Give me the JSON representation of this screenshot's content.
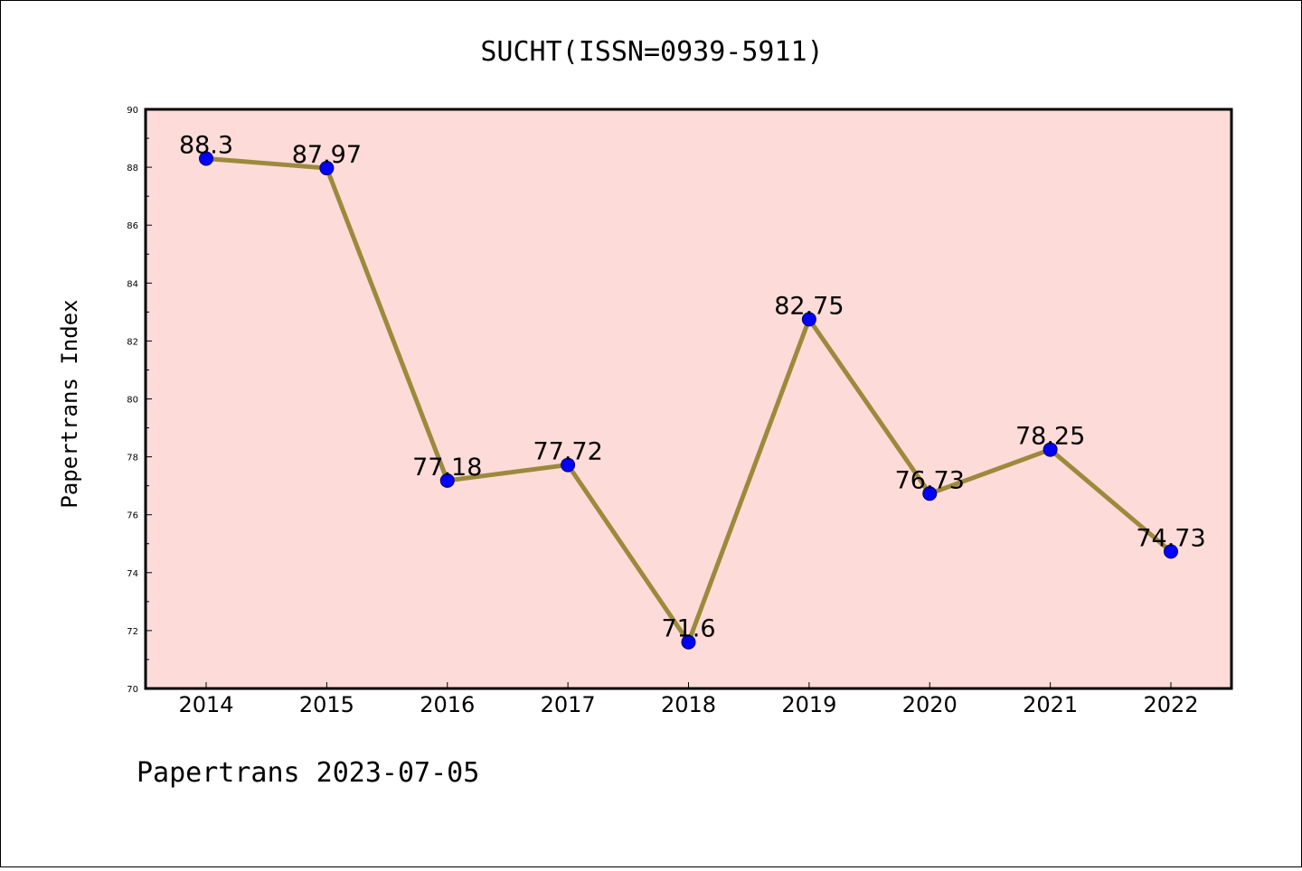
{
  "chart_data": {
    "type": "line",
    "title": "SUCHT(ISSN=0939-5911)",
    "xlabel": "",
    "ylabel": "Papertrans Index",
    "x": [
      "2014",
      "2015",
      "2016",
      "2017",
      "2018",
      "2019",
      "2020",
      "2021",
      "2022"
    ],
    "series": [
      {
        "values": [
          88.3,
          87.97,
          77.18,
          77.72,
          71.6,
          82.75,
          76.73,
          78.25,
          74.73
        ]
      }
    ],
    "data_labels": [
      "88.3",
      "87.97",
      "77.18",
      "77.72",
      "71.6",
      "82.75",
      "76.73",
      "78.25",
      "74.73"
    ],
    "ylim": [
      70,
      90
    ],
    "yticks": [
      "70",
      "72",
      "74",
      "76",
      "78",
      "80",
      "82",
      "84",
      "86",
      "88",
      "90"
    ],
    "grid": false,
    "colors": {
      "plot_background": "#fddbd8",
      "line": "#9c8a3c",
      "marker": "#0000ff"
    }
  },
  "footer": "Papertrans 2023-07-05"
}
